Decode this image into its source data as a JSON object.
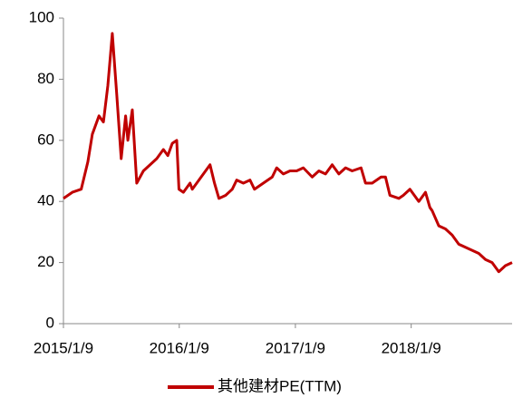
{
  "chart_data": {
    "type": "line",
    "x": [
      "2015/1/9",
      "2015/2/6",
      "2015/3/6",
      "2015/3/27",
      "2015/4/10",
      "2015/5/1",
      "2015/5/15",
      "2015/5/29",
      "2015/6/12",
      "2015/6/26",
      "2015/7/10",
      "2015/7/24",
      "2015/7/31",
      "2015/8/14",
      "2015/8/28",
      "2015/9/18",
      "2015/10/9",
      "2015/10/30",
      "2015/11/20",
      "2015/12/4",
      "2015/12/18",
      "2016/1/1",
      "2016/1/8",
      "2016/1/22",
      "2016/2/12",
      "2016/2/19",
      "2016/3/11",
      "2016/4/1",
      "2016/4/15",
      "2016/4/29",
      "2016/5/13",
      "2016/6/3",
      "2016/6/24",
      "2016/7/8",
      "2016/7/29",
      "2016/8/19",
      "2016/9/2",
      "2016/9/30",
      "2016/10/28",
      "2016/11/11",
      "2016/12/2",
      "2016/12/23",
      "2017/1/13",
      "2017/2/3",
      "2017/3/3",
      "2017/3/24",
      "2017/4/14",
      "2017/5/5",
      "2017/5/26",
      "2017/6/16",
      "2017/7/7",
      "2017/8/4",
      "2017/8/18",
      "2017/9/8",
      "2017/10/6",
      "2017/10/20",
      "2017/11/3",
      "2017/12/1",
      "2017/12/15",
      "2018/1/5",
      "2018/1/12",
      "2018/2/2",
      "2018/2/23",
      "2018/3/9",
      "2018/3/16",
      "2018/4/6",
      "2018/4/27",
      "2018/5/18",
      "2018/6/8",
      "2018/6/29",
      "2018/7/20",
      "2018/8/10",
      "2018/8/31",
      "2018/9/21",
      "2018/10/12",
      "2018/11/2",
      "2018/11/23"
    ],
    "series": [
      {
        "name": "其他建材PE(TTM)",
        "color": "#c00000",
        "values": [
          41,
          43,
          44,
          53,
          62,
          68,
          66,
          78,
          95,
          75,
          54,
          68,
          60,
          70,
          46,
          50,
          52,
          54,
          57,
          55,
          59,
          60,
          44,
          43,
          46,
          44,
          47,
          50,
          52,
          46,
          41,
          42,
          44,
          47,
          46,
          47,
          44,
          46,
          48,
          51,
          49,
          50,
          50,
          51,
          48,
          50,
          49,
          52,
          49,
          51,
          50,
          51,
          46,
          46,
          48,
          48,
          42,
          41,
          42,
          44,
          43,
          40,
          43,
          38,
          37,
          32,
          31,
          29,
          26,
          25,
          24,
          23,
          21,
          20,
          17,
          19,
          20
        ]
      }
    ],
    "xlim": [
      "2015/1/9",
      "2018/11/23"
    ],
    "xticks": [
      "2015/1/9",
      "2016/1/9",
      "2017/1/9",
      "2018/1/9"
    ],
    "ylim": [
      0,
      100
    ],
    "yticks": [
      0,
      20,
      40,
      60,
      80,
      100
    ],
    "legend": "bottom"
  }
}
